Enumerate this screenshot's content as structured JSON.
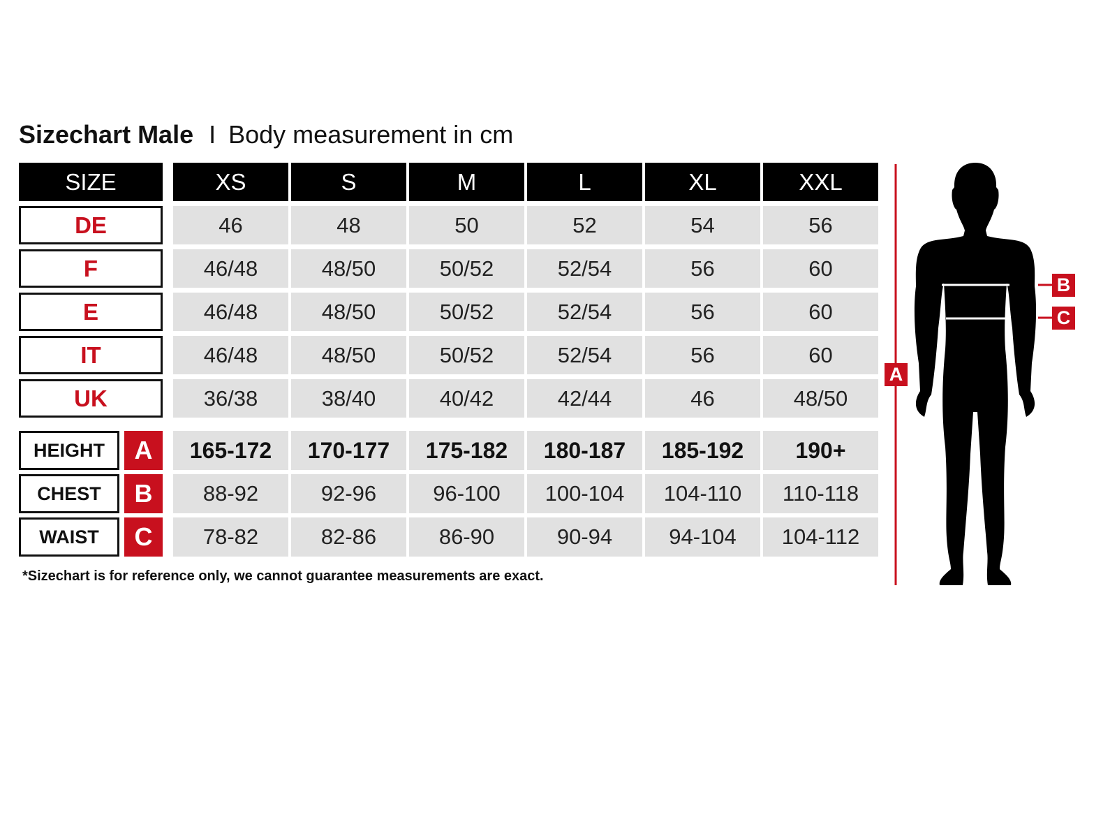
{
  "title": {
    "bold": "Sizechart Male",
    "separator": "I",
    "subtitle": "Body measurement in cm"
  },
  "header": {
    "label": "SIZE",
    "sizes": [
      "XS",
      "S",
      "M",
      "L",
      "XL",
      "XXL"
    ]
  },
  "country_rows": [
    {
      "label": "DE",
      "values": [
        "46",
        "48",
        "50",
        "52",
        "54",
        "56"
      ]
    },
    {
      "label": "F",
      "values": [
        "46/48",
        "48/50",
        "50/52",
        "52/54",
        "56",
        "60"
      ]
    },
    {
      "label": "E",
      "values": [
        "46/48",
        "48/50",
        "50/52",
        "52/54",
        "56",
        "60"
      ]
    },
    {
      "label": "IT",
      "values": [
        "46/48",
        "48/50",
        "50/52",
        "52/54",
        "56",
        "60"
      ]
    },
    {
      "label": "UK",
      "values": [
        "36/38",
        "38/40",
        "40/42",
        "42/44",
        "46",
        "48/50"
      ]
    }
  ],
  "measurement_rows": [
    {
      "label": "HEIGHT",
      "letter": "A",
      "values": [
        "165-172",
        "170-177",
        "175-182",
        "180-187",
        "185-192",
        "190+"
      ]
    },
    {
      "label": "CHEST",
      "letter": "B",
      "values": [
        "88-92",
        "92-96",
        "96-100",
        "100-104",
        "104-110",
        "110-118"
      ]
    },
    {
      "label": "WAIST",
      "letter": "C",
      "values": [
        "78-82",
        "82-86",
        "86-90",
        "90-94",
        "94-104",
        "104-112"
      ]
    }
  ],
  "footnote": "*Sizechart is for reference only, we cannot guarantee measurements are exact.",
  "figure": {
    "height_tag": "A",
    "chest_tag": "B",
    "waist_tag": "C"
  },
  "colors": {
    "accent_red": "#c8101e",
    "header_black": "#000000",
    "cell_gray": "#e1e1e1"
  }
}
